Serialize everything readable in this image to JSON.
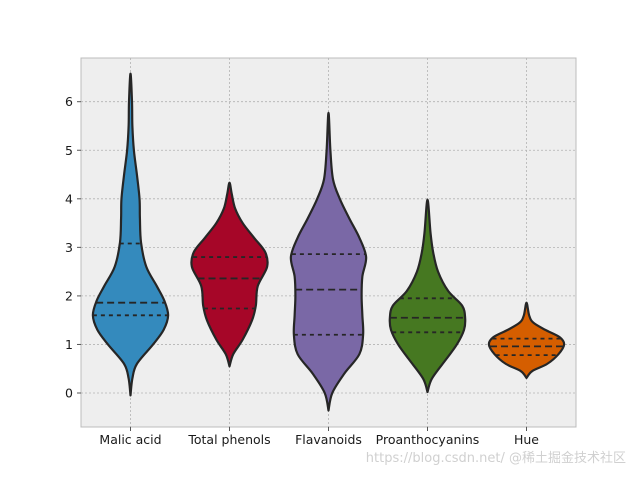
{
  "chart_data": {
    "type": "violin",
    "title": "",
    "xlabel": "",
    "ylabel": "",
    "ylim": [
      -0.7,
      6.9
    ],
    "yticks": [
      0,
      1,
      2,
      3,
      4,
      5,
      6
    ],
    "grid": true,
    "inner": "quartile",
    "categories": [
      "Malic acid",
      "Total phenols",
      "Flavanoids",
      "Proanthocyanins",
      "Hue"
    ],
    "series": [
      {
        "name": "Malic acid",
        "color": "#348abd",
        "min": -0.05,
        "max": 6.58,
        "quartiles": [
          1.6,
          1.86,
          3.08
        ],
        "profile": [
          [
            -0.05,
            0.0
          ],
          [
            0.3,
            0.05
          ],
          [
            0.6,
            0.17
          ],
          [
            1.0,
            0.6
          ],
          [
            1.3,
            0.88
          ],
          [
            1.6,
            1.0
          ],
          [
            1.9,
            0.9
          ],
          [
            2.2,
            0.7
          ],
          [
            2.6,
            0.42
          ],
          [
            3.1,
            0.28
          ],
          [
            3.6,
            0.25
          ],
          [
            4.0,
            0.24
          ],
          [
            4.5,
            0.17
          ],
          [
            5.0,
            0.09
          ],
          [
            5.5,
            0.05
          ],
          [
            6.0,
            0.04
          ],
          [
            6.58,
            0.0
          ]
        ]
      },
      {
        "name": "Total phenols",
        "color": "#a60628",
        "min": 0.55,
        "max": 4.33,
        "quartiles": [
          1.74,
          2.36,
          2.8
        ],
        "profile": [
          [
            0.55,
            0.0
          ],
          [
            0.8,
            0.1
          ],
          [
            1.1,
            0.35
          ],
          [
            1.5,
            0.6
          ],
          [
            1.8,
            0.7
          ],
          [
            2.2,
            0.75
          ],
          [
            2.6,
            1.0
          ],
          [
            2.9,
            0.95
          ],
          [
            3.2,
            0.65
          ],
          [
            3.5,
            0.35
          ],
          [
            3.8,
            0.15
          ],
          [
            4.1,
            0.06
          ],
          [
            4.33,
            0.0
          ]
        ]
      },
      {
        "name": "Flavanoids",
        "color": "#7a68a6",
        "min": -0.36,
        "max": 5.77,
        "quartiles": [
          1.2,
          2.13,
          2.86
        ],
        "profile": [
          [
            -0.36,
            0.0
          ],
          [
            0.0,
            0.1
          ],
          [
            0.4,
            0.42
          ],
          [
            0.8,
            0.82
          ],
          [
            1.2,
            0.92
          ],
          [
            1.6,
            0.9
          ],
          [
            2.0,
            0.88
          ],
          [
            2.4,
            0.9
          ],
          [
            2.8,
            1.0
          ],
          [
            3.2,
            0.82
          ],
          [
            3.6,
            0.55
          ],
          [
            4.0,
            0.3
          ],
          [
            4.4,
            0.12
          ],
          [
            5.0,
            0.05
          ],
          [
            5.77,
            0.0
          ]
        ]
      },
      {
        "name": "Proanthocyanins",
        "color": "#467821",
        "min": 0.02,
        "max": 3.98,
        "quartiles": [
          1.25,
          1.55,
          1.95
        ],
        "profile": [
          [
            0.02,
            0.0
          ],
          [
            0.3,
            0.12
          ],
          [
            0.7,
            0.5
          ],
          [
            1.0,
            0.78
          ],
          [
            1.3,
            0.97
          ],
          [
            1.55,
            1.0
          ],
          [
            1.8,
            0.92
          ],
          [
            2.1,
            0.55
          ],
          [
            2.5,
            0.28
          ],
          [
            2.9,
            0.15
          ],
          [
            3.3,
            0.08
          ],
          [
            3.98,
            0.0
          ]
        ]
      },
      {
        "name": "Hue",
        "color": "#d55e00",
        "min": 0.31,
        "max": 1.86,
        "quartiles": [
          0.78,
          0.96,
          1.12
        ],
        "profile": [
          [
            0.31,
            0.0
          ],
          [
            0.45,
            0.15
          ],
          [
            0.6,
            0.55
          ],
          [
            0.8,
            0.85
          ],
          [
            1.0,
            1.0
          ],
          [
            1.15,
            0.88
          ],
          [
            1.3,
            0.5
          ],
          [
            1.45,
            0.18
          ],
          [
            1.6,
            0.07
          ],
          [
            1.86,
            0.0
          ]
        ]
      }
    ]
  },
  "watermark": "https://blog.csdn.net/   @稀土掘金技术社区"
}
